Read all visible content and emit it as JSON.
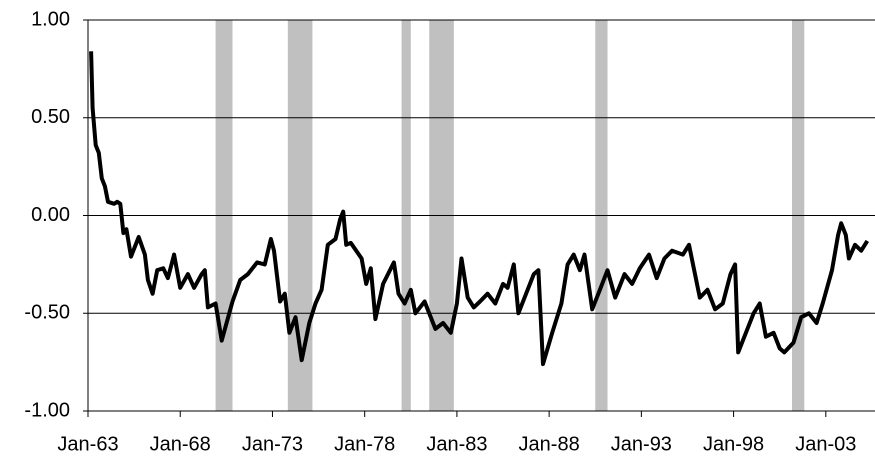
{
  "chart_data": {
    "type": "line",
    "x": [
      "Mar-63",
      "Apr-63",
      "Jun-63",
      "Aug-63",
      "Oct-63",
      "Dec-63",
      "Feb-64",
      "Jun-64",
      "Aug-64",
      "Oct-64",
      "Dec-64",
      "Feb-65",
      "May-65",
      "Oct-65",
      "Feb-66",
      "Apr-66",
      "Jul-66",
      "Oct-66",
      "Feb-67",
      "May-67",
      "Sep-67",
      "Jan-68",
      "Jun-68",
      "Oct-68",
      "Mar-69",
      "May-69",
      "Jul-69",
      "Dec-69",
      "Apr-70",
      "Nov-70",
      "Apr-71",
      "Sep-71",
      "Mar-72",
      "Aug-72",
      "Dec-72",
      "Feb-73",
      "Jun-73",
      "Sep-73",
      "Dec-73",
      "Apr-74",
      "Aug-74",
      "Jan-75",
      "May-75",
      "Sep-75",
      "Jan-76",
      "Jun-76",
      "Sep-76",
      "Nov-76",
      "Jan-77",
      "Apr-77",
      "Nov-77",
      "Feb-78",
      "May-78",
      "Aug-78",
      "Jan-79",
      "Aug-79",
      "Nov-79",
      "Mar-80",
      "Jul-80",
      "Oct-80",
      "Apr-81",
      "Jul-81",
      "Nov-81",
      "Apr-82",
      "Sep-82",
      "Jan-83",
      "Apr-83",
      "Aug-83",
      "Dec-83",
      "Apr-84",
      "Sep-84",
      "Feb-85",
      "Jul-85",
      "Oct-85",
      "Feb-86",
      "May-86",
      "Oct-86",
      "Mar-87",
      "Jun-87",
      "Sep-87",
      "Mar-88",
      "Sep-88",
      "Jan-89",
      "May-89",
      "Sep-89",
      "Dec-89",
      "May-90",
      "Oct-90",
      "Mar-91",
      "Aug-91",
      "Feb-92",
      "Jul-92",
      "Dec-92",
      "Jun-93",
      "Nov-93",
      "Apr-94",
      "Sep-94",
      "Apr-95",
      "Aug-95",
      "Mar-96",
      "Aug-96",
      "Jan-97",
      "Jun-97",
      "Nov-97",
      "Feb-98",
      "Apr-98",
      "Sep-98",
      "Feb-99",
      "Jun-99",
      "Oct-99",
      "Mar-00",
      "Jul-00",
      "Oct-00",
      "Apr-01",
      "Sep-01",
      "Feb-02",
      "Jul-02",
      "Nov-02",
      "May-03",
      "Sep-03",
      "Nov-03",
      "Feb-04",
      "Apr-04",
      "Aug-04",
      "Dec-04",
      "Apr-05"
    ],
    "series": [
      {
        "color": "#000000",
        "values": [
          0.84,
          0.55,
          0.36,
          0.32,
          0.19,
          0.15,
          0.07,
          0.06,
          0.07,
          0.06,
          -0.09,
          -0.07,
          -0.21,
          -0.11,
          -0.2,
          -0.33,
          -0.4,
          -0.28,
          -0.27,
          -0.32,
          -0.2,
          -0.37,
          -0.3,
          -0.37,
          -0.3,
          -0.28,
          -0.47,
          -0.45,
          -0.64,
          -0.44,
          -0.33,
          -0.3,
          -0.24,
          -0.25,
          -0.12,
          -0.18,
          -0.44,
          -0.4,
          -0.6,
          -0.52,
          -0.74,
          -0.55,
          -0.45,
          -0.38,
          -0.15,
          -0.12,
          -0.02,
          0.02,
          -0.15,
          -0.14,
          -0.22,
          -0.35,
          -0.27,
          -0.53,
          -0.35,
          -0.24,
          -0.4,
          -0.45,
          -0.38,
          -0.5,
          -0.44,
          -0.5,
          -0.58,
          -0.55,
          -0.6,
          -0.45,
          -0.22,
          -0.42,
          -0.47,
          -0.44,
          -0.4,
          -0.45,
          -0.35,
          -0.37,
          -0.25,
          -0.5,
          -0.4,
          -0.3,
          -0.28,
          -0.76,
          -0.6,
          -0.45,
          -0.25,
          -0.2,
          -0.28,
          -0.2,
          -0.48,
          -0.38,
          -0.28,
          -0.42,
          -0.3,
          -0.35,
          -0.27,
          -0.2,
          -0.32,
          -0.22,
          -0.18,
          -0.2,
          -0.15,
          -0.42,
          -0.38,
          -0.48,
          -0.45,
          -0.3,
          -0.25,
          -0.7,
          -0.6,
          -0.5,
          -0.45,
          -0.62,
          -0.6,
          -0.68,
          -0.7,
          -0.65,
          -0.52,
          -0.5,
          -0.55,
          -0.45,
          -0.28,
          -0.1,
          -0.04,
          -0.1,
          -0.22,
          -0.15,
          -0.18,
          -0.13
        ]
      }
    ],
    "recessions": [
      {
        "start": "Dec-69",
        "end": "Nov-70"
      },
      {
        "start": "Nov-73",
        "end": "Mar-75"
      },
      {
        "start": "Jan-80",
        "end": "Jul-80"
      },
      {
        "start": "Jul-81",
        "end": "Nov-82"
      },
      {
        "start": "Jul-90",
        "end": "Mar-91"
      },
      {
        "start": "Mar-01",
        "end": "Nov-01"
      }
    ],
    "recession_color": "#c0c0c0",
    "xlim": [
      "Jan-63",
      "Sep-05"
    ],
    "xticks": [
      "Jan-63",
      "Jan-68",
      "Jan-73",
      "Jan-78",
      "Jan-83",
      "Jan-88",
      "Jan-93",
      "Jan-98",
      "Jan-03"
    ],
    "ylim": [
      -1,
      1
    ],
    "yticks": [
      {
        "value": -1,
        "label": "-1.00"
      },
      {
        "value": -0.5,
        "label": "-0.50"
      },
      {
        "value": 0,
        "label": "0.00"
      },
      {
        "value": 0.5,
        "label": "0.50"
      },
      {
        "value": 1,
        "label": "1.00"
      }
    ],
    "grid": true
  }
}
